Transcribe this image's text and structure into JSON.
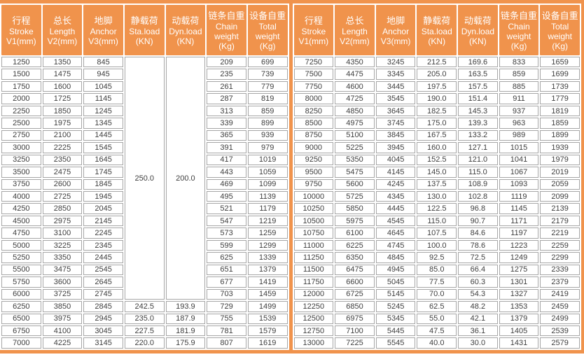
{
  "colors": {
    "header_orange": "#F0934C",
    "border_gray": "#A6A6A6",
    "cell_text": "#3E3E3E",
    "header_text": "#FFFFFF"
  },
  "table": {
    "columns": [
      {
        "key": "stroke",
        "lines": [
          "行程",
          "Stroke",
          "V1(mm)"
        ]
      },
      {
        "key": "length",
        "lines": [
          "总长",
          "Length",
          "V2(mm)"
        ]
      },
      {
        "key": "anchor",
        "lines": [
          "地脚",
          "Anchor",
          "V3(mm)"
        ]
      },
      {
        "key": "sta-load",
        "lines": [
          "静载荷",
          "Sta.load",
          "(KN)"
        ]
      },
      {
        "key": "dyn-load",
        "lines": [
          "动载荷",
          "Dyn.load",
          "(KN)"
        ]
      },
      {
        "key": "chain-weight",
        "lines": [
          "链条自重",
          "Chain",
          "weight",
          "(Kg)"
        ]
      },
      {
        "key": "total-weight",
        "lines": [
          "设备自重",
          "Total",
          "weight",
          "(Kg)"
        ]
      }
    ],
    "left": {
      "merges": [
        {
          "row": 0,
          "col": 3,
          "rowspan": 20
        },
        {
          "row": 0,
          "col": 4,
          "rowspan": 20
        }
      ],
      "rows": [
        [
          "1250",
          "1350",
          "845",
          "250.0",
          "200.0",
          "209",
          "699"
        ],
        [
          "1500",
          "1475",
          "945",
          null,
          null,
          "235",
          "739"
        ],
        [
          "1750",
          "1600",
          "1045",
          null,
          null,
          "261",
          "779"
        ],
        [
          "2000",
          "1725",
          "1145",
          null,
          null,
          "287",
          "819"
        ],
        [
          "2250",
          "1850",
          "1245",
          null,
          null,
          "313",
          "859"
        ],
        [
          "2500",
          "1975",
          "1345",
          null,
          null,
          "339",
          "899"
        ],
        [
          "2750",
          "2100",
          "1445",
          null,
          null,
          "365",
          "939"
        ],
        [
          "3000",
          "2225",
          "1545",
          null,
          null,
          "391",
          "979"
        ],
        [
          "3250",
          "2350",
          "1645",
          null,
          null,
          "417",
          "1019"
        ],
        [
          "3500",
          "2475",
          "1745",
          null,
          null,
          "443",
          "1059"
        ],
        [
          "3750",
          "2600",
          "1845",
          null,
          null,
          "469",
          "1099"
        ],
        [
          "4000",
          "2725",
          "1945",
          null,
          null,
          "495",
          "1139"
        ],
        [
          "4250",
          "2850",
          "2045",
          null,
          null,
          "521",
          "1179"
        ],
        [
          "4500",
          "2975",
          "2145",
          null,
          null,
          "547",
          "1219"
        ],
        [
          "4750",
          "3100",
          "2245",
          null,
          null,
          "573",
          "1259"
        ],
        [
          "5000",
          "3225",
          "2345",
          null,
          null,
          "599",
          "1299"
        ],
        [
          "5250",
          "3350",
          "2445",
          null,
          null,
          "625",
          "1339"
        ],
        [
          "5500",
          "3475",
          "2545",
          null,
          null,
          "651",
          "1379"
        ],
        [
          "5750",
          "3600",
          "2645",
          null,
          null,
          "677",
          "1419"
        ],
        [
          "6000",
          "3725",
          "2745",
          null,
          null,
          "703",
          "1459"
        ],
        [
          "6250",
          "3850",
          "2845",
          "242.5",
          "193.9",
          "729",
          "1499"
        ],
        [
          "6500",
          "3975",
          "2945",
          "235.0",
          "187.9",
          "755",
          "1539"
        ],
        [
          "6750",
          "4100",
          "3045",
          "227.5",
          "181.9",
          "781",
          "1579"
        ],
        [
          "7000",
          "4225",
          "3145",
          "220.0",
          "175.9",
          "807",
          "1619"
        ]
      ]
    },
    "right": {
      "rows": [
        [
          "7250",
          "4350",
          "3245",
          "212.5",
          "169.6",
          "833",
          "1659"
        ],
        [
          "7500",
          "4475",
          "3345",
          "205.0",
          "163.5",
          "859",
          "1699"
        ],
        [
          "7750",
          "4600",
          "3445",
          "197.5",
          "157.5",
          "885",
          "1739"
        ],
        [
          "8000",
          "4725",
          "3545",
          "190.0",
          "151.4",
          "911",
          "1779"
        ],
        [
          "8250",
          "4850",
          "3645",
          "182.5",
          "145.3",
          "937",
          "1819"
        ],
        [
          "8500",
          "4975",
          "3745",
          "175.0",
          "139.3",
          "963",
          "1859"
        ],
        [
          "8750",
          "5100",
          "3845",
          "167.5",
          "133.2",
          "989",
          "1899"
        ],
        [
          "9000",
          "5225",
          "3945",
          "160.0",
          "127.1",
          "1015",
          "1939"
        ],
        [
          "9250",
          "5350",
          "4045",
          "152.5",
          "121.0",
          "1041",
          "1979"
        ],
        [
          "9500",
          "5475",
          "4145",
          "145.0",
          "115.0",
          "1067",
          "2019"
        ],
        [
          "9750",
          "5600",
          "4245",
          "137.5",
          "108.9",
          "1093",
          "2059"
        ],
        [
          "10000",
          "5725",
          "4345",
          "130.0",
          "102.8",
          "1119",
          "2099"
        ],
        [
          "10250",
          "5850",
          "4445",
          "122.5",
          "96.8",
          "1145",
          "2139"
        ],
        [
          "10500",
          "5975",
          "4545",
          "115.0",
          "90.7",
          "1171",
          "2179"
        ],
        [
          "10750",
          "6100",
          "4645",
          "107.5",
          "84.6",
          "1197",
          "2219"
        ],
        [
          "11000",
          "6225",
          "4745",
          "100.0",
          "78.6",
          "1223",
          "2259"
        ],
        [
          "11250",
          "6350",
          "4845",
          "92.5",
          "72.5",
          "1249",
          "2299"
        ],
        [
          "11500",
          "6475",
          "4945",
          "85.0",
          "66.4",
          "1275",
          "2339"
        ],
        [
          "11750",
          "6600",
          "5045",
          "77.5",
          "60.3",
          "1301",
          "2379"
        ],
        [
          "12000",
          "6725",
          "5145",
          "70.0",
          "54.3",
          "1327",
          "2419"
        ],
        [
          "12250",
          "6850",
          "5245",
          "62.5",
          "48.2",
          "1353",
          "2459"
        ],
        [
          "12500",
          "6975",
          "5345",
          "55.0",
          "42.1",
          "1379",
          "2499"
        ],
        [
          "12750",
          "7100",
          "5445",
          "47.5",
          "36.1",
          "1405",
          "2539"
        ],
        [
          "13000",
          "7225",
          "5545",
          "40.0",
          "30.0",
          "1431",
          "2579"
        ]
      ]
    }
  }
}
